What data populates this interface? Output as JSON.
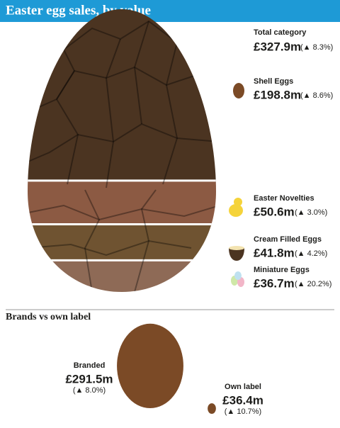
{
  "title": "Easter egg sales, by value",
  "sales": {
    "total": {
      "name": "Total category",
      "value": {
        "value": 327.9,
        "label": "£327.9m"
      },
      "change": {
        "value": 8.3,
        "label": "(▲ 8.3%)"
      }
    },
    "segments": [
      {
        "name": "Shell Eggs",
        "value": {
          "value": 198.8,
          "label": "£198.8m"
        },
        "change": {
          "value": 8.6,
          "label": "(▲ 8.6%)"
        },
        "color": "#4b3421"
      },
      {
        "name": "Easter Novelties",
        "value": {
          "value": 50.6,
          "label": "£50.6m"
        },
        "change": {
          "value": 3.0,
          "label": "(▲ 3.0%)"
        },
        "color": "#8c5a43"
      },
      {
        "name": "Cream Filled Eggs",
        "value": {
          "value": 41.8,
          "label": "£41.8m"
        },
        "change": {
          "value": 4.2,
          "label": "(▲ 4.2%)"
        },
        "color": "#6f5331"
      },
      {
        "name": "Miniature Eggs",
        "value": {
          "value": 36.7,
          "label": "£36.7m"
        },
        "change": {
          "value": 20.2,
          "label": "(▲ 20.2%)"
        },
        "color": "#8e6a56"
      }
    ]
  },
  "brands": {
    "title": "Brands vs own label",
    "items": [
      {
        "name": "Branded",
        "value": {
          "value": 291.5,
          "label": "£291.5m"
        },
        "change": {
          "value": 8.0,
          "label": "(▲ 8.0%)"
        }
      },
      {
        "name": "Own label",
        "value": {
          "value": 36.4,
          "label": "£36.4m"
        },
        "change": {
          "value": 10.7,
          "label": "(▲ 10.7%)"
        }
      }
    ],
    "color": "#7b4a26"
  }
}
